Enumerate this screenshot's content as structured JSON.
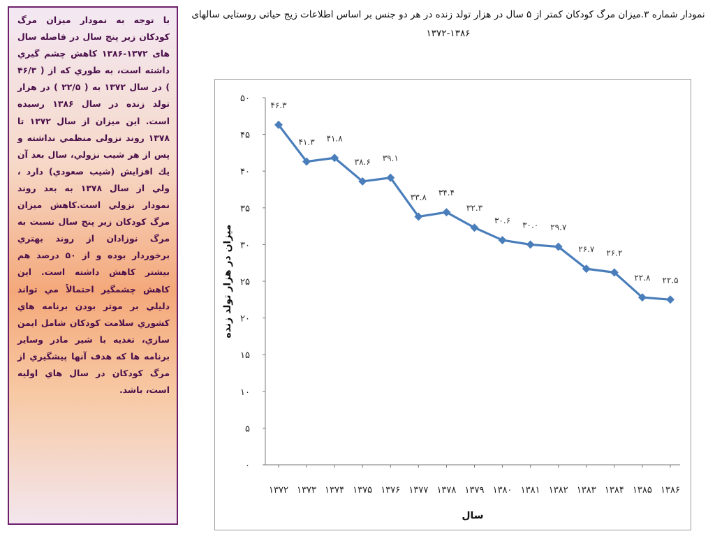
{
  "side_panel": {
    "text": "با توجه به نمودار میزان مرگ کودکان زیر پنج سال در فاصله سال های ۱۳۷۲-۱۳۸۶ کاهش چشم گیري داشته است، به طوري که از ( ۴۶/۳ ) در سال ۱۳۷۲ به ( ۲۲/۵ ) در هزار تولد زنده در سال ۱۳۸۶ رسیده است. این میزان از سال ۱۳۷۲ تا ۱۳۷۸ روند نزولی منظمي نداشته و پس از هر شیب نزولي، سال بعد آن یك افزایش (شیب صعودي) دارد ، ولي از سال ۱۳۷۸ به بعد روند نمودار نزولي است.کاهش میزان مرگ کودکان زیر پنج سال نسبت به مرگ نوزادان از روند بهتري برخوردار بوده و از ۵۰ درصد هم بیشتر کاهش داشته است. این کاهش چشمگیر احتمالاً مي تواند دلیلي بر موثر بودن برنامه هاي کشوري سلامت کودکان شامل ایمن سازي، تغذیه با شیر مادر وسایر برنامه ها که هدف آنها پیشگیري از مرگ کودکان در سال هاي اولیه است، باشد."
  },
  "header": {
    "title": "نمودار شماره ۳.میزان مرگ کودکان کمتر از ۵ سال در هزار تولد زنده در هر دو جنس بر اساس اطلاعات زیج حیاتی روستایی سالهای ۱۳۸۶-۱۳۷۲"
  },
  "chart_data": {
    "type": "line",
    "categories": [
      "۱۳۷۲",
      "۱۳۷۳",
      "۱۳۷۴",
      "۱۳۷۵",
      "۱۳۷۶",
      "۱۳۷۷",
      "۱۳۷۸",
      "۱۳۷۹",
      "۱۳۸۰",
      "۱۳۸۱",
      "۱۳۸۲",
      "۱۳۸۳",
      "۱۳۸۴",
      "۱۳۸۵",
      "۱۳۸۶"
    ],
    "values": [
      46.3,
      41.3,
      41.8,
      38.6,
      39.1,
      33.8,
      34.4,
      32.3,
      30.6,
      30.0,
      29.7,
      26.7,
      26.2,
      22.8,
      22.5
    ],
    "data_labels": [
      "۴۶.۳",
      "۴۱.۳",
      "۴۱.۸",
      "۳۸.۶",
      "۳۹.۱",
      "۳۳.۸",
      "۳۴.۴",
      "۳۲.۳",
      "۳۰.۶",
      "۳۰.۰",
      "۲۹.۷",
      "۲۶.۷",
      "۲۶.۲",
      "۲۲.۸",
      "۲۲.۵"
    ],
    "yticks": [
      0,
      5,
      10,
      15,
      20,
      25,
      30,
      35,
      40,
      45,
      50
    ],
    "ytick_labels": [
      "۰",
      "۵",
      "۱۰",
      "۱۵",
      "۲۰",
      "۲۵",
      "۳۰",
      "۳۵",
      "۴۰",
      "۴۵",
      "۵۰"
    ],
    "ylim": [
      0,
      50
    ],
    "xlabel": "سال",
    "ylabel": "میزان در هزار تولد زنده",
    "grid": false,
    "line_color": "#4a7ebb",
    "marker": "diamond"
  }
}
